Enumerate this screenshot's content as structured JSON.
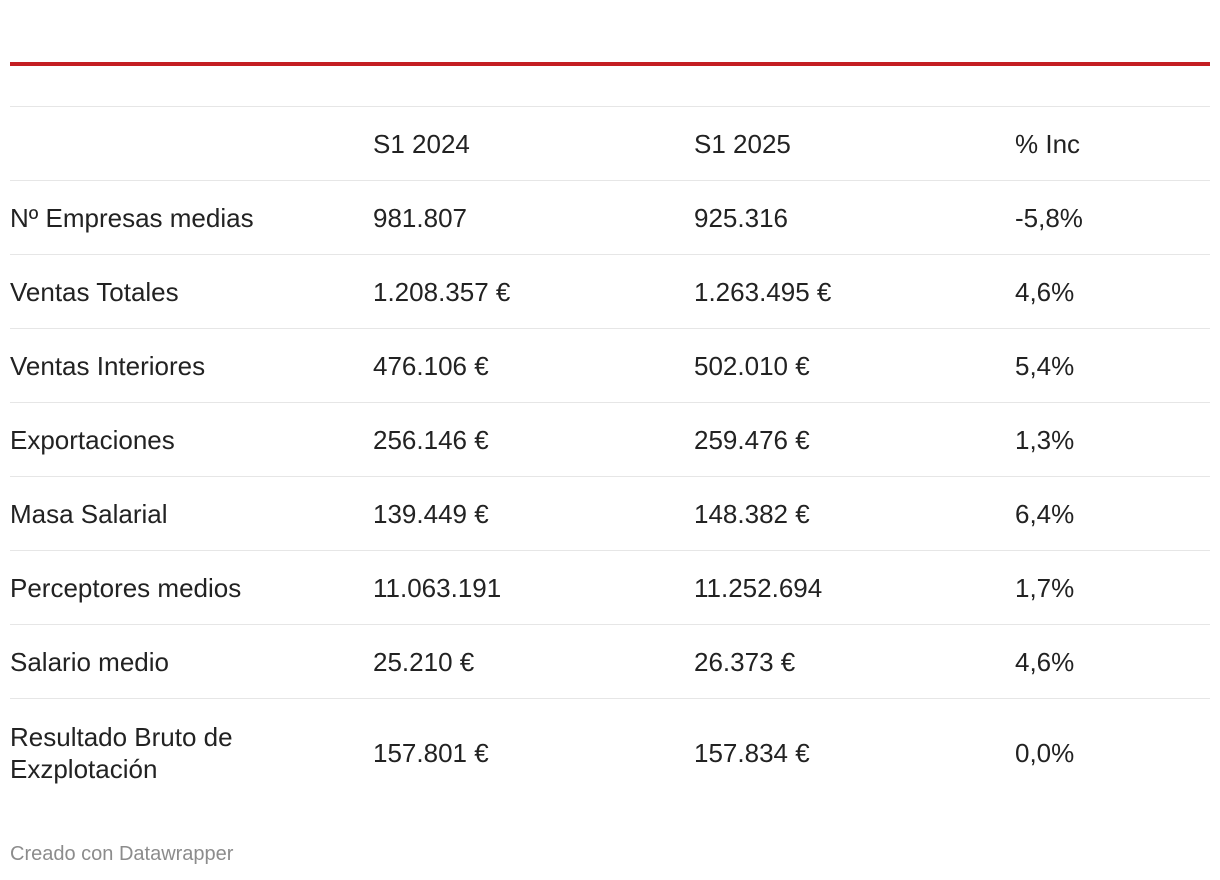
{
  "chart_data": {
    "type": "table",
    "columns": [
      "",
      "S1 2024",
      "S1 2025",
      "% Inc"
    ],
    "rows": [
      [
        "Nº Empresas medias",
        "981.807",
        "925.316",
        "-5,8%"
      ],
      [
        "Ventas Totales",
        "1.208.357 €",
        "1.263.495 €",
        "4,6%"
      ],
      [
        "Ventas Interiores",
        "476.106 €",
        "502.010 €",
        "5,4%"
      ],
      [
        "Exportaciones",
        "256.146 €",
        "259.476 €",
        "1,3%"
      ],
      [
        "Masa Salarial",
        "139.449 €",
        "148.382 €",
        "6,4%"
      ],
      [
        "Perceptores medios",
        "11.063.191",
        "11.252.694",
        "1,7%"
      ],
      [
        "Salario medio",
        "25.210 €",
        "26.373 €",
        "4,6%"
      ],
      [
        "Resultado Bruto de Exzplotación",
        "157.801 €",
        "157.834 €",
        "0,0%"
      ]
    ]
  },
  "footer": {
    "credit": "Creado con Datawrapper"
  },
  "colors": {
    "accent": "#c41e22",
    "rule": "#e6e6e6",
    "text": "#222222",
    "footer_text": "#8c8c8c"
  }
}
